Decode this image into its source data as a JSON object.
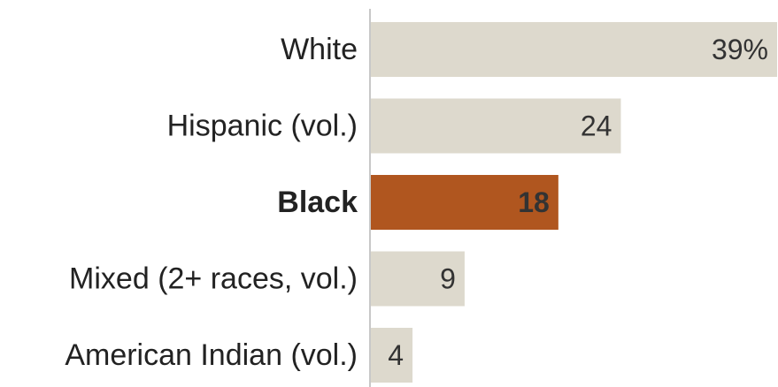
{
  "chart_data": {
    "type": "bar",
    "orientation": "horizontal",
    "categories": [
      "White",
      "Hispanic (vol.)",
      "Black",
      "Mixed (2+ races, vol.)",
      "American Indian (vol.)"
    ],
    "values": [
      39,
      24,
      18,
      9,
      4
    ],
    "value_labels": [
      "39%",
      "24",
      "18",
      "9",
      "4"
    ],
    "highlighted_category": "Black",
    "xlim": [
      0,
      39
    ],
    "grid": false,
    "legend": "none",
    "colors": {
      "bar": "#ddd9cd",
      "highlight": "#b0561f",
      "axis_line": "#c8c8c8",
      "label_text": "#222222",
      "value_text": "#333333",
      "highlight_value_text": "#ffffff"
    }
  }
}
